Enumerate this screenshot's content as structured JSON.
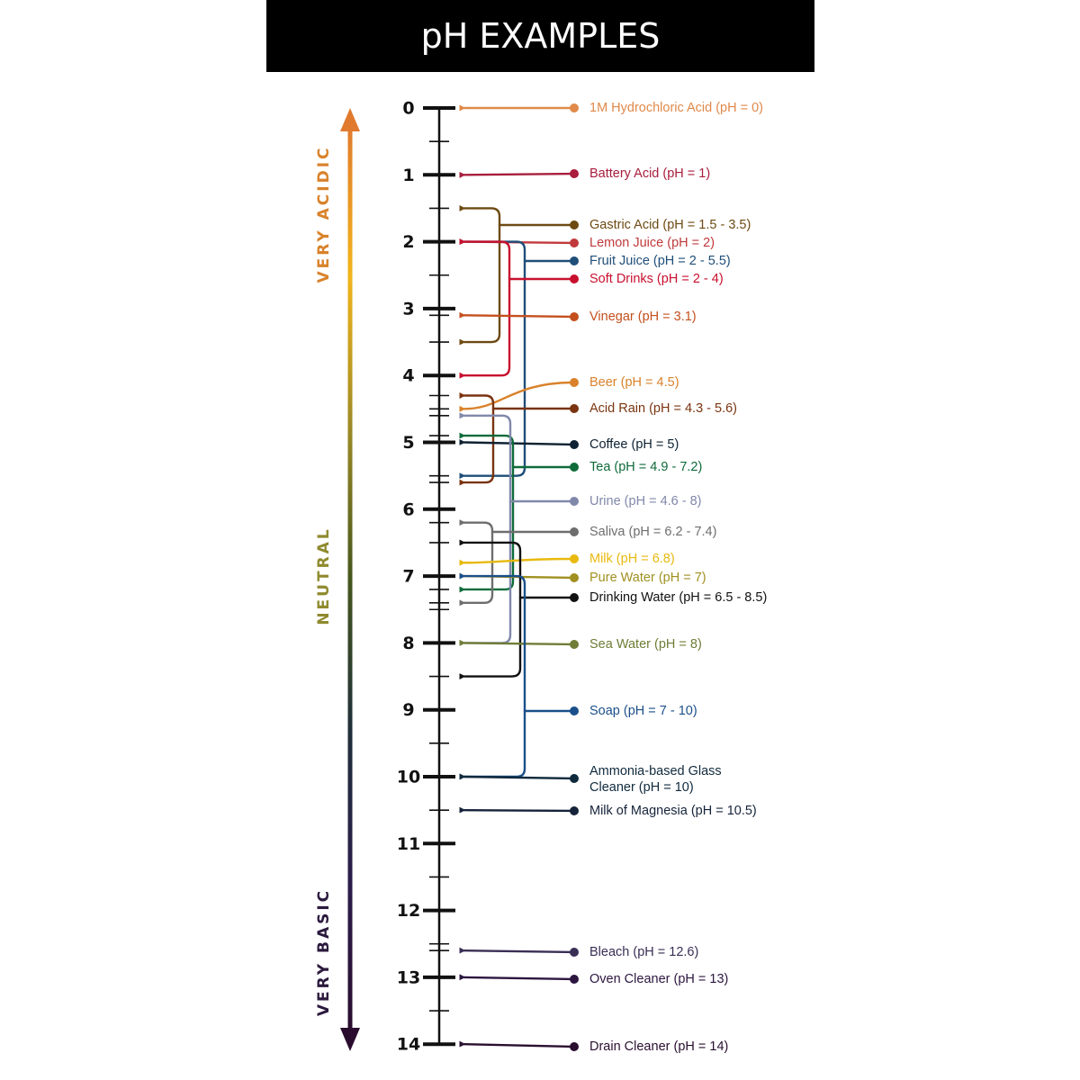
{
  "title": "pH EXAMPLES",
  "regions": [
    {
      "label": "VERY ACIDIC",
      "color": "#d9822b"
    },
    {
      "label": "NEUTRAL",
      "color": "#8f8a2e"
    },
    {
      "label": "VERY BASIC",
      "color": "#2b1a3d"
    }
  ],
  "gradient_colors": [
    "#e07a2e",
    "#f2b51c",
    "#9c8a26",
    "#46571e",
    "#1f2f3a",
    "#2b1d4a",
    "#2a0d2e"
  ],
  "ticks": [
    "0",
    "1",
    "2",
    "3",
    "4",
    "5",
    "6",
    "7",
    "8",
    "9",
    "10",
    "11",
    "12",
    "13",
    "14"
  ],
  "substances": [
    {
      "name": "1M Hydrochloric Acid (pH = 0)",
      "ph": [
        0
      ],
      "color": "#e0894a"
    },
    {
      "name": "Battery Acid (pH = 1)",
      "ph": [
        1
      ],
      "color": "#a81e3c"
    },
    {
      "name": "Gastric Acid (pH = 1.5 - 3.5)",
      "ph": [
        1.5,
        3.5
      ],
      "color": "#6e4a12"
    },
    {
      "name": "Lemon Juice (pH = 2)",
      "ph": [
        2
      ],
      "color": "#c0393b"
    },
    {
      "name": "Fruit Juice (pH = 2 - 5.5)",
      "ph": [
        2,
        5.5
      ],
      "color": "#1f4e79"
    },
    {
      "name": "Soft Drinks (pH = 2 - 4)",
      "ph": [
        2,
        4
      ],
      "color": "#c8102e"
    },
    {
      "name": "Vinegar (pH = 3.1)",
      "ph": [
        3.1
      ],
      "color": "#c4501e"
    },
    {
      "name": "Beer (pH = 4.5)",
      "ph": [
        4.5
      ],
      "color": "#d9822b"
    },
    {
      "name": "Acid Rain (pH = 4.3 - 5.6)",
      "ph": [
        4.3,
        5.6
      ],
      "color": "#7a3410"
    },
    {
      "name": "Coffee (pH = 5)",
      "ph": [
        5
      ],
      "color": "#0f2233"
    },
    {
      "name": "Tea (pH = 4.9 - 7.2)",
      "ph": [
        4.9,
        7.2
      ],
      "color": "#0f6b3a"
    },
    {
      "name": "Urine (pH = 4.6 - 8)",
      "ph": [
        4.6,
        8
      ],
      "color": "#8088aa"
    },
    {
      "name": "Saliva (pH = 6.2 - 7.4)",
      "ph": [
        6.2,
        7.4
      ],
      "color": "#6e6e6e"
    },
    {
      "name": "Milk (pH = 6.8)",
      "ph": [
        6.8
      ],
      "color": "#e8b90e"
    },
    {
      "name": "Pure Water (pH = 7)",
      "ph": [
        7
      ],
      "color": "#a09020"
    },
    {
      "name": "Drinking Water (pH = 6.5 - 8.5)",
      "ph": [
        6.5,
        8.5
      ],
      "color": "#111111"
    },
    {
      "name": "Sea Water (pH = 8)",
      "ph": [
        8
      ],
      "color": "#6f7d36"
    },
    {
      "name": "Soap (pH = 7 - 10)",
      "ph": [
        7,
        10
      ],
      "color": "#1b4f8a"
    },
    {
      "name": "Ammonia-based Glass Cleaner (pH = 10)",
      "ph": [
        10
      ],
      "color": "#0f2a3d"
    },
    {
      "name": "Milk of Magnesia (pH = 10.5)",
      "ph": [
        10.5
      ],
      "color": "#15233a"
    },
    {
      "name": "Bleach (pH = 12.6)",
      "ph": [
        12.6
      ],
      "color": "#3a2e55"
    },
    {
      "name": "Oven Cleaner (pH = 13)",
      "ph": [
        13
      ],
      "color": "#2c1640"
    },
    {
      "name": "Drain Cleaner (pH = 14)",
      "ph": [
        14
      ],
      "color": "#2a0f30"
    }
  ]
}
